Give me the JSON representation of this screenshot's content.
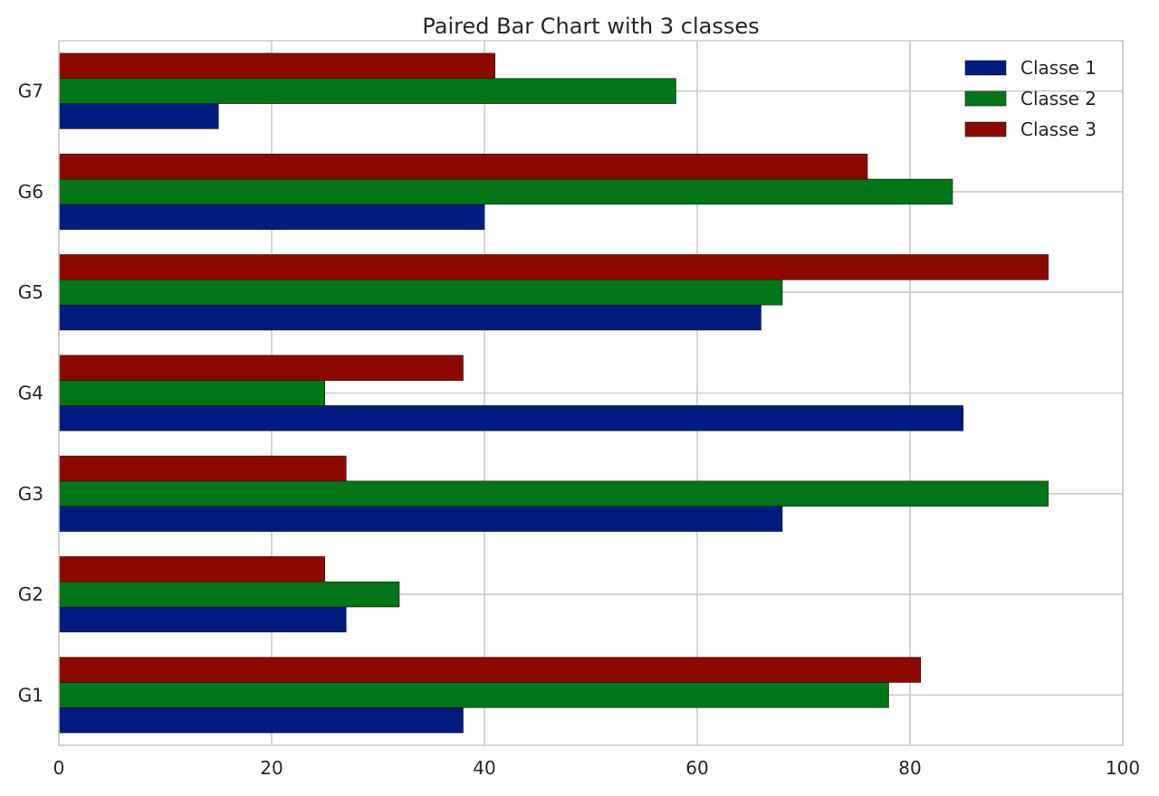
{
  "chart_data": {
    "type": "bar",
    "orientation": "horizontal",
    "title": "Paired Bar Chart with 3 classes",
    "xlabel": "",
    "ylabel": "",
    "xlim": [
      0,
      100
    ],
    "x_ticks": [
      0,
      20,
      40,
      60,
      80,
      100
    ],
    "grid": true,
    "legend_position": "top-right",
    "categories": [
      "G1",
      "G2",
      "G3",
      "G4",
      "G5",
      "G6",
      "G7"
    ],
    "series": [
      {
        "name": "Classe 1",
        "color": "#001c7f",
        "values": [
          38,
          27,
          68,
          85,
          66,
          40,
          15
        ]
      },
      {
        "name": "Classe 2",
        "color": "#017517",
        "values": [
          78,
          32,
          93,
          25,
          68,
          84,
          58
        ]
      },
      {
        "name": "Classe 3",
        "color": "#8c0900",
        "values": [
          81,
          25,
          27,
          38,
          93,
          76,
          41
        ]
      }
    ]
  }
}
